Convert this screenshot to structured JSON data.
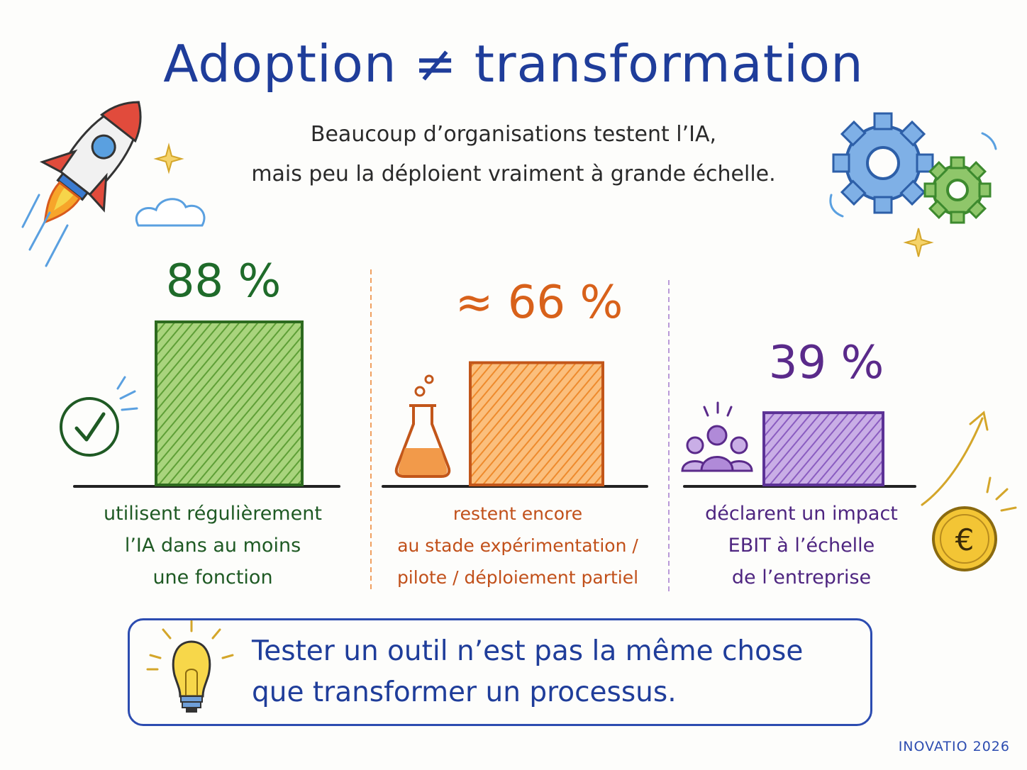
{
  "title": "Adoption ≠ transformation",
  "subtitle": {
    "line1": "Beaucoup d’organisations testent l’IA,",
    "line2": "mais peu la déploient vraiment à grande échelle."
  },
  "stats": [
    {
      "value": "88 %",
      "level": 88,
      "desc": [
        "utilisent régulièrement",
        "l’IA dans au moins",
        "une fonction"
      ],
      "color": "#1f6b2a",
      "fill_color": "#7cb64a",
      "icon": "check-circle-icon"
    },
    {
      "value": "≈ 66 %",
      "level": 66,
      "desc": [
        "restent encore",
        "au stade expérimentation /",
        "pilote / déploiement partiel"
      ],
      "color": "#d8611a",
      "fill_color": "#f59a3c",
      "icon": "flask-icon"
    },
    {
      "value": "39 %",
      "level": 39,
      "desc": [
        "déclarent un impact",
        "EBIT à l’échelle",
        "de l’entreprise"
      ],
      "color": "#5a2a8a",
      "fill_color": "#9a6ac8",
      "icon": "people-group-icon"
    }
  ],
  "callout": {
    "line1": "Tester un outil n’est pas la même chose",
    "line2": "que transformer un processus.",
    "icon": "lightbulb-icon"
  },
  "footer": "INOVATIO 2026",
  "decorations": [
    "rocket-icon",
    "cloud-icon",
    "sparkle-icon",
    "gears-icon",
    "euro-coin-icon",
    "growth-arrow-icon"
  ]
}
